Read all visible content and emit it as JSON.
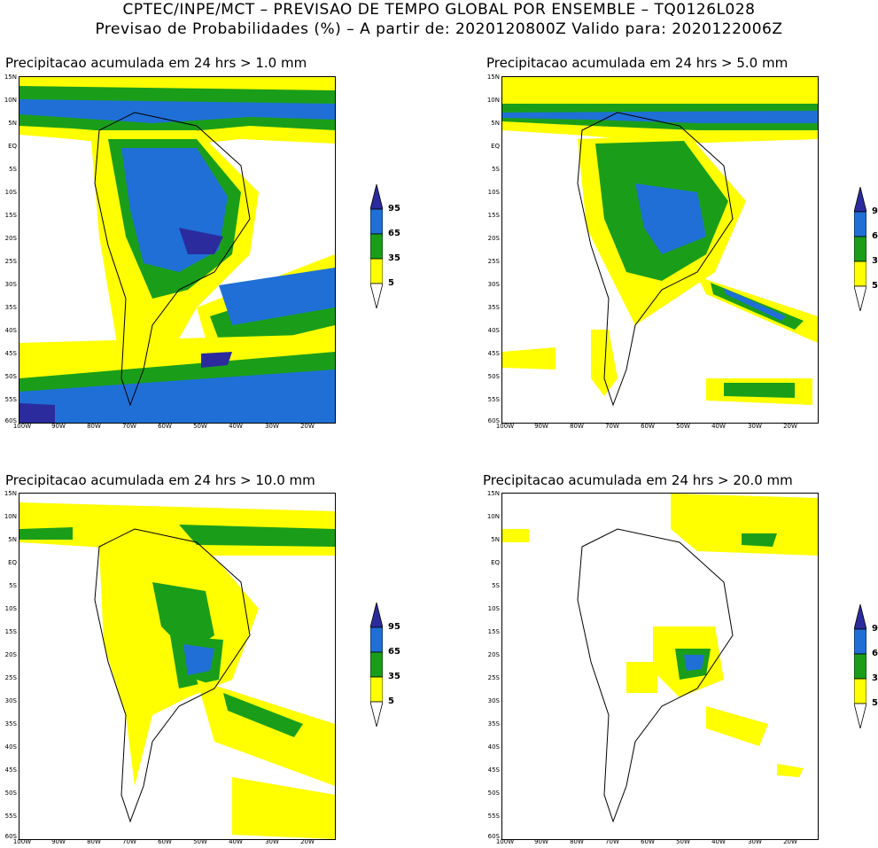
{
  "header": {
    "line1": "CPTEC/INPE/MCT – PREVISAO DE TEMPO GLOBAL POR ENSEMBLE – TQ0126L028",
    "line2": "Previsao de Probabilidades (%) –  A partir de: 2020120800Z  Valido para: 2020122006Z"
  },
  "axes": {
    "lat_labels": [
      "15N",
      "10N",
      "5N",
      "EQ",
      "5S",
      "10S",
      "15S",
      "20S",
      "25S",
      "30S",
      "35S",
      "40S",
      "45S",
      "50S",
      "55S",
      "60S"
    ],
    "lon_labels": [
      "100W",
      "90W",
      "80W",
      "70W",
      "60W",
      "50W",
      "40W",
      "30W",
      "20W"
    ]
  },
  "legend": {
    "levels": [
      "5",
      "35",
      "65",
      "95"
    ],
    "colors": {
      "c5": "#ffff00",
      "c35": "#1a9e1a",
      "c65": "#1f6fd6",
      "c95": "#2b2b9e"
    }
  },
  "panels": [
    {
      "title": "Precipitacao acumulada em 24 hrs > 1.0 mm"
    },
    {
      "title": "Precipitacao acumulada em 24 hrs > 5.0 mm"
    },
    {
      "title": "Precipitacao acumulada em 24 hrs > 10.0 mm"
    },
    {
      "title": "Precipitacao acumulada em 24 hrs > 20.0 mm"
    }
  ]
}
